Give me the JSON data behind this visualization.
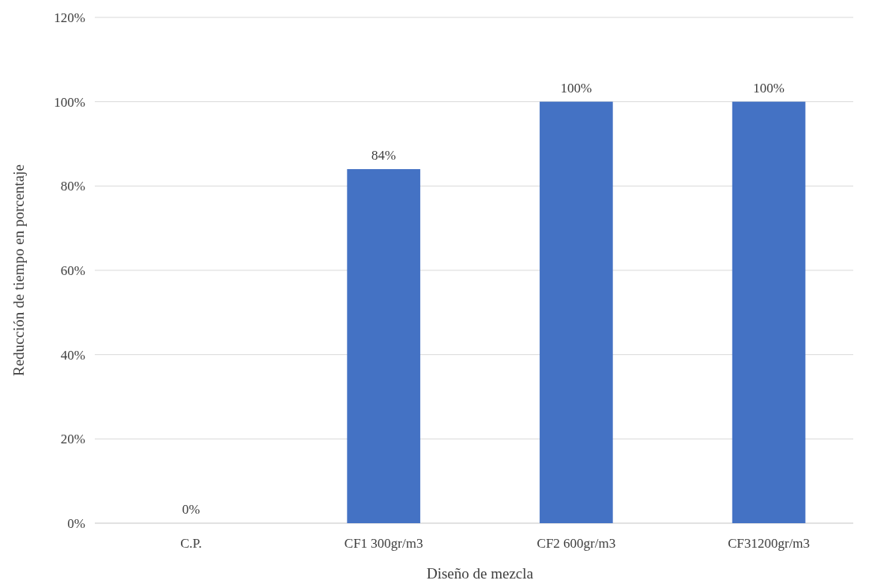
{
  "chart_data": {
    "type": "bar",
    "categories": [
      "C.P.",
      "CF1 300gr/m3",
      "CF2 600gr/m3",
      "CF31200gr/m3"
    ],
    "values": [
      0,
      84,
      100,
      100
    ],
    "value_labels": [
      "0%",
      "84%",
      "100%",
      "100%"
    ],
    "color": "#4472c4",
    "xlabel": "Diseño de mezcla",
    "ylabel": "Reducción de tiempo en porcentaje",
    "ylim": [
      0,
      120
    ],
    "yticks": [
      {
        "value": 0,
        "label": "0%"
      },
      {
        "value": 20,
        "label": "20%"
      },
      {
        "value": 40,
        "label": "40%"
      },
      {
        "value": 60,
        "label": "60%"
      },
      {
        "value": 80,
        "label": "80%"
      },
      {
        "value": 100,
        "label": "100%"
      },
      {
        "value": 120,
        "label": "120%"
      }
    ],
    "grid": "y"
  }
}
